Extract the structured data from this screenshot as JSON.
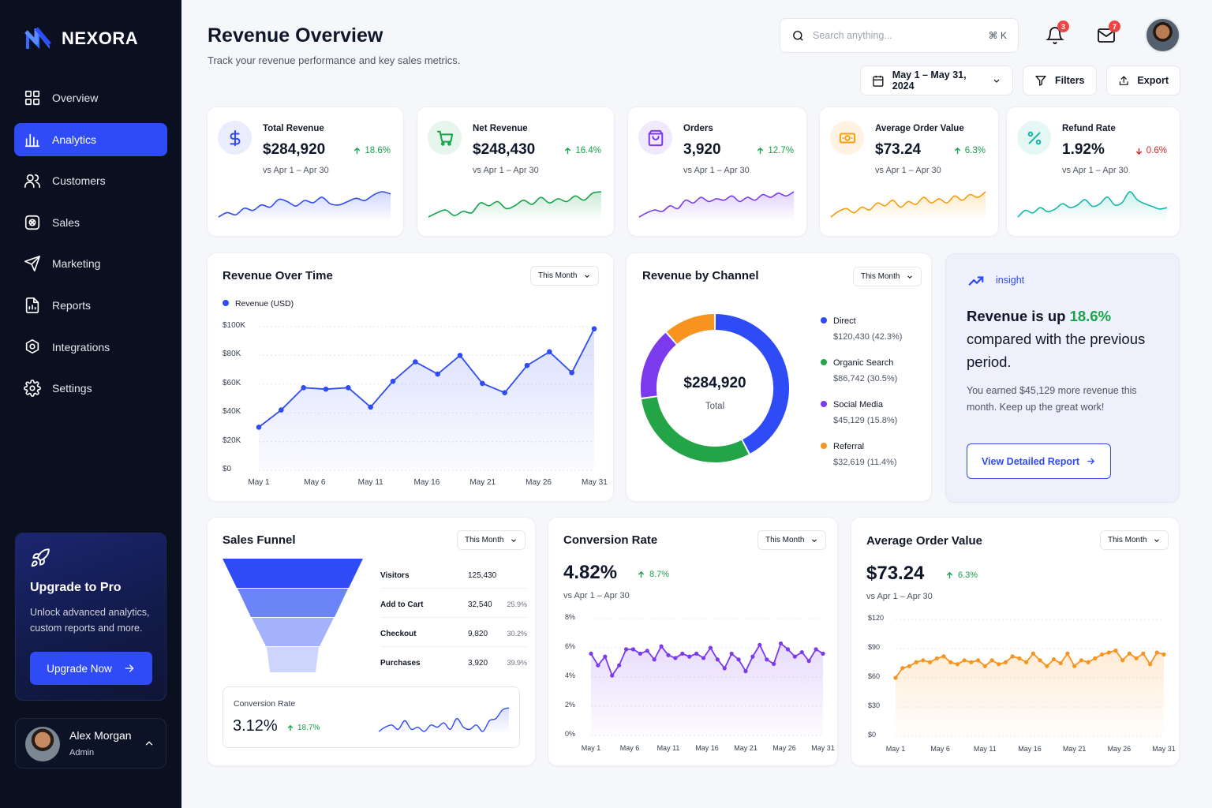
{
  "brand": {
    "name": "NEXORA",
    "accent": "#2f4bf5"
  },
  "sidebar": {
    "items": [
      {
        "label": "Overview",
        "icon": "grid-icon"
      },
      {
        "label": "Analytics",
        "icon": "bar-chart-icon",
        "active": true
      },
      {
        "label": "Customers",
        "icon": "users-icon"
      },
      {
        "label": "Sales",
        "icon": "sales-icon"
      },
      {
        "label": "Marketing",
        "icon": "send-icon"
      },
      {
        "label": "Reports",
        "icon": "report-icon"
      },
      {
        "label": "Integrations",
        "icon": "integrations-icon"
      },
      {
        "label": "Settings",
        "icon": "gear-icon"
      }
    ],
    "upgrade": {
      "title": "Upgrade to Pro",
      "text": "Unlock advanced analytics, custom reports and more.",
      "button": "Upgrade Now"
    },
    "user": {
      "name": "Alex Morgan",
      "role": "Admin"
    }
  },
  "header": {
    "title": "Revenue Overview",
    "subtitle": "Track your revenue performance and key sales metrics.",
    "search_placeholder": "Search anything...",
    "shortcut": "⌘  K",
    "notifications": "3",
    "messages": "7",
    "date_range": "May 1 – May 31, 2024",
    "filters": "Filters",
    "export": "Export"
  },
  "kpis": [
    {
      "label": "Total Revenue",
      "value": "$284,920",
      "change": "18.6%",
      "dir": "up",
      "compare": "vs Apr 1 – Apr 30",
      "icon": "dollar-icon",
      "color": "#2f4bf5",
      "spark": [
        30,
        34,
        32,
        38,
        36,
        41,
        39,
        46,
        44,
        40,
        45,
        43,
        48,
        42,
        41,
        44,
        47,
        45,
        50,
        53,
        51
      ]
    },
    {
      "label": "Net Revenue",
      "value": "$248,430",
      "change": "16.4%",
      "dir": "up",
      "compare": "vs Apr 1 – Apr 30",
      "icon": "cart-icon",
      "color": "#16a34a",
      "spark": [
        30,
        33,
        35,
        31,
        34,
        33,
        40,
        38,
        41,
        36,
        38,
        42,
        39,
        44,
        40,
        43,
        41,
        45,
        42,
        47,
        48
      ]
    },
    {
      "label": "Orders",
      "value": "3,920",
      "change": "12.7%",
      "dir": "up",
      "compare": "vs Apr 1 – Apr 30",
      "icon": "bag-icon",
      "color": "#7c3aed",
      "spark": [
        30,
        33,
        35,
        34,
        38,
        36,
        42,
        40,
        44,
        41,
        43,
        42,
        45,
        41,
        44,
        42,
        46,
        44,
        47,
        45,
        48
      ]
    },
    {
      "label": "Average Order Value",
      "value": "$73.24",
      "change": "6.3%",
      "dir": "up",
      "compare": "vs Apr 1 – Apr 30",
      "icon": "money-icon",
      "color": "#f59e0b",
      "spark": [
        28,
        32,
        34,
        31,
        35,
        33,
        38,
        36,
        40,
        35,
        39,
        37,
        42,
        38,
        41,
        38,
        43,
        40,
        44,
        42,
        46
      ]
    },
    {
      "label": "Refund Rate",
      "value": "1.92%",
      "change": "0.6%",
      "dir": "down",
      "compare": "vs Apr 1 – Apr 30",
      "icon": "percent-icon",
      "color": "#14b8a6",
      "spark": [
        30,
        35,
        33,
        37,
        34,
        36,
        40,
        37,
        39,
        43,
        38,
        40,
        45,
        39,
        41,
        49,
        43,
        40,
        38,
        36,
        37
      ]
    }
  ],
  "revenue_over_time": {
    "title": "Revenue Over Time",
    "period": "This Month",
    "legend": "Revenue (USD)",
    "y_ticks": [
      "$100K",
      "$80K",
      "$60K",
      "$40K",
      "$20K",
      "$0"
    ],
    "x_ticks": [
      "May 1",
      "May 6",
      "May 11",
      "May 16",
      "May 21",
      "May 26",
      "May 31"
    ]
  },
  "revenue_by_channel": {
    "title": "Revenue by Channel",
    "period": "This Month",
    "total": "$284,920",
    "total_label": "Total",
    "channels": [
      {
        "name": "Direct",
        "value": "$120,430 (42.3%)",
        "pct": 42.3,
        "color": "#2f4bf5"
      },
      {
        "name": "Organic Search",
        "value": "$86,742 (30.5%)",
        "pct": 30.5,
        "color": "#22a447"
      },
      {
        "name": "Social Media",
        "value": "$45,129 (15.8%)",
        "pct": 15.8,
        "color": "#7c3aed"
      },
      {
        "name": "Referral",
        "value": "$32,619 (11.4%)",
        "pct": 11.4,
        "color": "#f7931e"
      }
    ]
  },
  "insight": {
    "tag": "insight",
    "headline_pre": "Revenue is up",
    "headline_pct": "18.6%",
    "headline_post": "compared with the previous period.",
    "body": "You earned $45,129 more revenue this month. Keep up the great work!",
    "button": "View Detailed Report"
  },
  "sales_funnel": {
    "title": "Sales Funnel",
    "period": "This Month",
    "stages": [
      {
        "name": "Visitors",
        "count": "125,430",
        "rate": ""
      },
      {
        "name": "Add to Cart",
        "count": "32,540",
        "rate": "25.9%"
      },
      {
        "name": "Checkout",
        "count": "9,820",
        "rate": "30.2%"
      },
      {
        "name": "Purchases",
        "count": "3,920",
        "rate": "39.9%"
      }
    ],
    "conversion": {
      "label": "Conversion Rate",
      "value": "3.12%",
      "change": "18.7%"
    }
  },
  "conversion_rate": {
    "title": "Conversion Rate",
    "period": "This Month",
    "value": "4.82%",
    "change": "8.7%",
    "compare": "vs Apr 1 – Apr 30",
    "y_ticks": [
      "8%",
      "6%",
      "4%",
      "2%",
      "0%"
    ],
    "x_ticks": [
      "May 1",
      "May 6",
      "May 11",
      "May 16",
      "May 21",
      "May 26",
      "May 31"
    ]
  },
  "avg_order_value": {
    "title": "Average Order Value",
    "period": "This Month",
    "value": "$73.24",
    "change": "6.3%",
    "compare": "vs Apr 1 – Apr 30",
    "y_ticks": [
      "$120",
      "$90",
      "$60",
      "$30",
      "$0"
    ],
    "x_ticks": [
      "May 1",
      "May 6",
      "May 11",
      "May 16",
      "May 21",
      "May 26",
      "May 31"
    ]
  },
  "chart_data": [
    {
      "type": "area",
      "title": "Revenue Over Time",
      "x": [
        "May 1",
        "May 3",
        "May 5",
        "May 7",
        "May 9",
        "May 11",
        "May 13",
        "May 15",
        "May 17",
        "May 19",
        "May 21",
        "May 23",
        "May 25",
        "May 27",
        "May 29",
        "May 31"
      ],
      "series": [
        {
          "name": "Revenue (USD)",
          "values": [
            30000,
            42000,
            57500,
            56500,
            57500,
            44000,
            62000,
            75500,
            67000,
            80000,
            60500,
            54000,
            73000,
            82500,
            68000,
            98500
          ]
        }
      ],
      "ylim": [
        0,
        100000
      ]
    },
    {
      "type": "pie",
      "title": "Revenue by Channel",
      "categories": [
        "Direct",
        "Organic Search",
        "Social Media",
        "Referral"
      ],
      "values": [
        120430,
        86742,
        45129,
        32619
      ]
    },
    {
      "type": "line",
      "title": "Conversion Rate",
      "x_range": [
        "May 1",
        "May 31"
      ],
      "series": [
        {
          "values": [
            5.6,
            4.8,
            5.4,
            4.1,
            4.8,
            5.9,
            5.9,
            5.6,
            5.8,
            5.2,
            6.1,
            5.5,
            5.3,
            5.6,
            5.4,
            5.6,
            5.3,
            6.0,
            5.2,
            4.6,
            5.6,
            5.2,
            4.4,
            5.4,
            6.2,
            5.2,
            4.9,
            6.3,
            5.9,
            5.4,
            5.7,
            5.1,
            5.9,
            5.6
          ]
        }
      ],
      "ylim": [
        0,
        8
      ]
    },
    {
      "type": "line",
      "title": "Average Order Value",
      "x_range": [
        "May 1",
        "May 31"
      ],
      "series": [
        {
          "values": [
            60,
            70,
            72,
            76,
            78,
            76,
            80,
            82,
            76,
            74,
            78,
            76,
            78,
            72,
            78,
            74,
            76,
            82,
            80,
            76,
            85,
            78,
            72,
            79,
            75,
            85,
            72,
            78,
            76,
            80,
            84,
            86,
            88,
            78,
            85,
            80,
            85,
            74,
            86,
            84
          ]
        }
      ],
      "ylim": [
        0,
        120
      ]
    },
    {
      "type": "line",
      "title": "Conversion Rate",
      "series": [
        {
          "values": [
            2.8,
            3.0,
            3.1,
            2.9,
            3.3,
            2.9,
            3.0,
            2.8,
            3.1,
            3.0,
            3.2,
            2.9,
            3.4,
            3.0,
            2.9,
            3.1,
            2.8,
            3.3,
            3.4,
            3.8,
            3.9
          ]
        }
      ]
    }
  ]
}
